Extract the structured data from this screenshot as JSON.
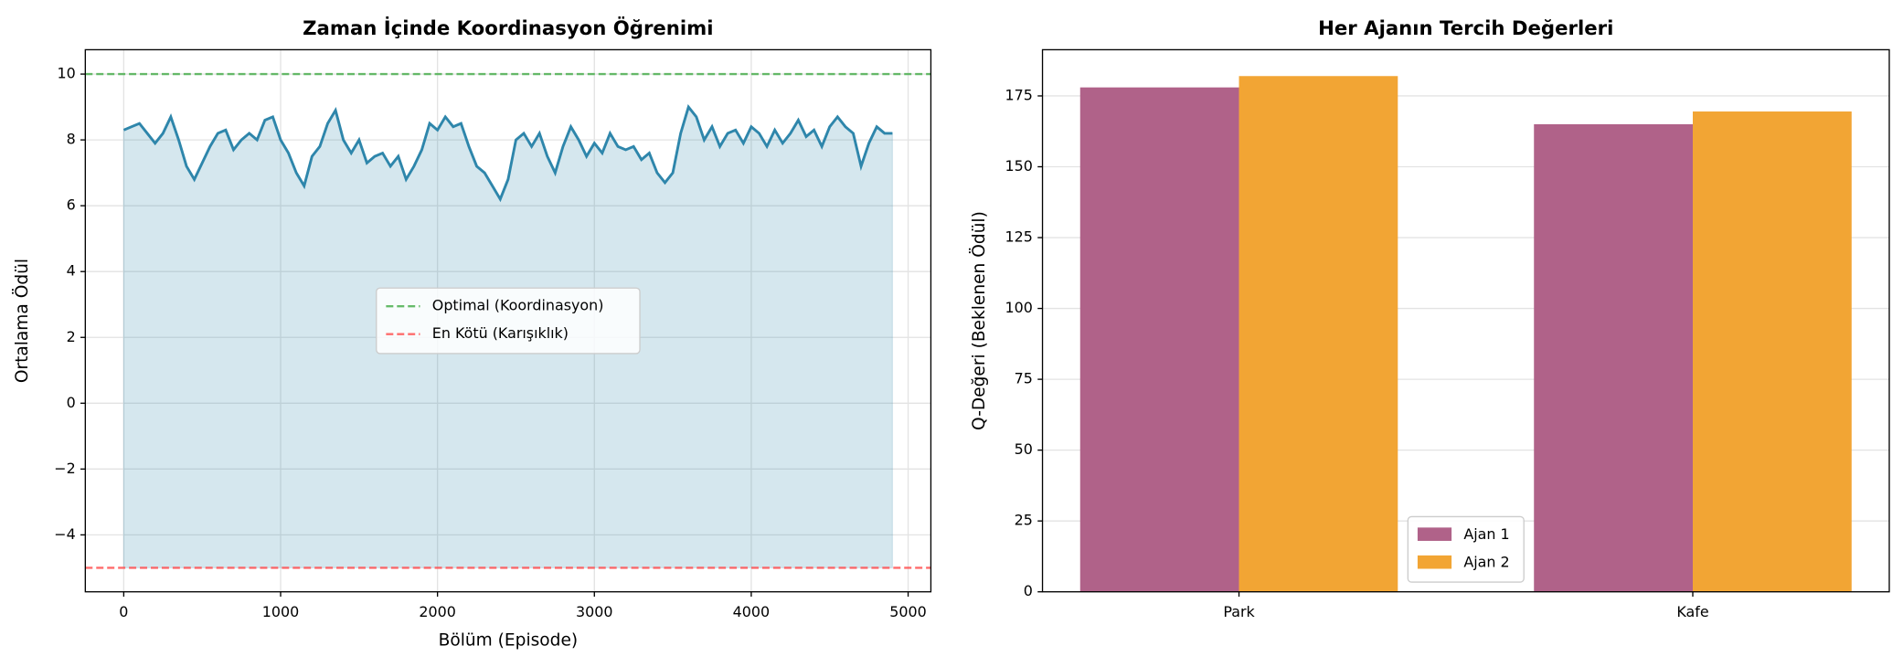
{
  "chart_data": [
    {
      "type": "line",
      "title": "Zaman İçinde Koordinasyon Öğrenimi",
      "xlabel": "Bölüm (Episode)",
      "ylabel": "Ortalama Ödül",
      "line": {
        "color": "#2e86ab",
        "x": [
          0,
          50,
          100,
          150,
          200,
          250,
          300,
          350,
          400,
          450,
          500,
          550,
          600,
          650,
          700,
          750,
          800,
          850,
          900,
          950,
          1000,
          1050,
          1100,
          1150,
          1200,
          1250,
          1300,
          1350,
          1400,
          1450,
          1500,
          1550,
          1600,
          1650,
          1700,
          1750,
          1800,
          1850,
          1900,
          1950,
          2000,
          2050,
          2100,
          2150,
          2200,
          2250,
          2300,
          2350,
          2400,
          2450,
          2500,
          2550,
          2600,
          2650,
          2700,
          2750,
          2800,
          2850,
          2900,
          2950,
          3000,
          3050,
          3100,
          3150,
          3200,
          3250,
          3300,
          3350,
          3400,
          3450,
          3500,
          3550,
          3600,
          3650,
          3700,
          3750,
          3800,
          3850,
          3900,
          3950,
          4000,
          4050,
          4100,
          4150,
          4200,
          4250,
          4300,
          4350,
          4400,
          4450,
          4500,
          4550,
          4600,
          4650,
          4700,
          4750,
          4800,
          4850,
          4900
        ],
        "values": [
          8.3,
          8.4,
          8.5,
          8.2,
          7.9,
          8.2,
          8.7,
          8.0,
          7.2,
          6.8,
          7.3,
          7.8,
          8.2,
          8.3,
          7.7,
          8.0,
          8.2,
          8.0,
          8.6,
          8.7,
          8.0,
          7.6,
          7.0,
          6.6,
          7.5,
          7.8,
          8.5,
          8.9,
          8.0,
          7.6,
          8.0,
          7.3,
          7.5,
          7.6,
          7.2,
          7.5,
          6.8,
          7.2,
          7.7,
          8.5,
          8.3,
          8.7,
          8.4,
          8.5,
          7.8,
          7.2,
          7.0,
          6.6,
          6.2,
          6.8,
          8.0,
          8.2,
          7.8,
          8.2,
          7.5,
          7.0,
          7.8,
          8.4,
          8.0,
          7.5,
          7.9,
          7.6,
          8.2,
          7.8,
          7.7,
          7.8,
          7.4,
          7.6,
          7.0,
          6.7,
          7.0,
          8.2,
          9.0,
          8.7,
          8.0,
          8.4,
          7.8,
          8.2,
          8.3,
          7.9,
          8.4,
          8.2,
          7.8,
          8.3,
          7.9,
          8.2,
          8.6,
          8.1,
          8.3,
          7.8,
          8.4,
          8.7,
          8.4,
          8.2,
          7.2,
          7.9,
          8.4,
          8.2,
          8.2
        ]
      },
      "hlines": [
        {
          "name": "Optimal (Koordinasyon)",
          "value": 10,
          "color": "#4caf50"
        },
        {
          "name": "En Kötü (Karışıklık)",
          "value": -5,
          "color": "#ff5252"
        }
      ],
      "xlim": [
        -245,
        5145
      ],
      "xticks": [
        0,
        1000,
        2000,
        3000,
        4000,
        5000
      ],
      "ylim": [
        -5.73,
        10.74
      ],
      "yticks": [
        {
          "value": -4,
          "label": "−4"
        },
        {
          "value": -2,
          "label": "−2"
        },
        0,
        2,
        4,
        6,
        8,
        10
      ],
      "grid": true,
      "legend": "center"
    },
    {
      "type": "bar",
      "title": "Her Ajanın Tercih Değerleri",
      "ylabel": "Q-Değeri (Beklenen Ödül)",
      "categories": [
        "Park",
        "Kafe"
      ],
      "series": [
        {
          "name": "Ajan 1",
          "color": "#b06289",
          "values": [
            178,
            165
          ]
        },
        {
          "name": "Ajan 2",
          "color": "#f2a534",
          "values": [
            182,
            169.5
          ]
        }
      ],
      "xlim": [
        -0.433,
        1.433
      ],
      "ylim": [
        0,
        191.3
      ],
      "yticks": [
        0,
        25,
        50,
        75,
        100,
        125,
        150,
        175
      ],
      "grid": true,
      "legend": "lower center"
    }
  ]
}
